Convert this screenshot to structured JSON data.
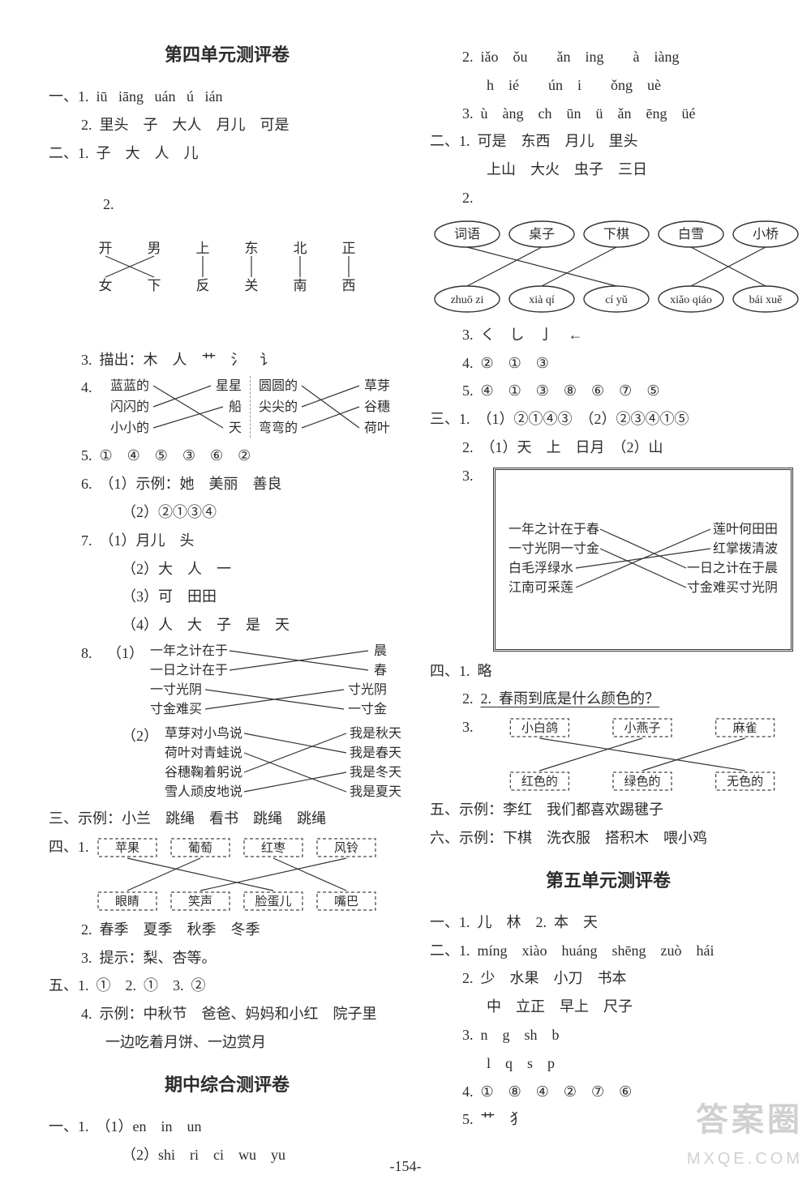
{
  "page_number": "-154-",
  "watermark": {
    "line1": "答案圈",
    "line2": "MXQE.COM"
  },
  "left": {
    "title": "第四单元测评卷",
    "s1_1": "一、1.  iū   iāng   uán   ú   ián",
    "s1_2": "2.  里头　子　大人　月儿　可是",
    "s2_1": "二、1.  子　大　人　儿",
    "s2_2_top": [
      "开",
      "男",
      "上",
      "东",
      "北",
      "正"
    ],
    "s2_2_bot": [
      "女",
      "下",
      "反",
      "关",
      "南",
      "西"
    ],
    "s2_2_map": [
      [
        0,
        1
      ],
      [
        1,
        0
      ],
      [
        2,
        2
      ],
      [
        3,
        3
      ],
      [
        4,
        4
      ],
      [
        5,
        5
      ]
    ],
    "s2_3": "3.  描出：木　人　艹　氵　讠",
    "s2_4_left_top": [
      "蓝蓝的",
      "闪闪的",
      "小小的"
    ],
    "s2_4_left_bot": [
      "星星",
      "船",
      "天"
    ],
    "s2_4_left_map": [
      [
        0,
        2
      ],
      [
        1,
        0
      ],
      [
        2,
        1
      ]
    ],
    "s2_4_right_top": [
      "圆圆的",
      "尖尖的",
      "弯弯的"
    ],
    "s2_4_right_bot": [
      "草芽",
      "谷穗",
      "荷叶"
    ],
    "s2_4_right_map": [
      [
        0,
        2
      ],
      [
        1,
        0
      ],
      [
        2,
        1
      ]
    ],
    "s2_5": "5.  ①　④　⑤　③　⑥　②",
    "s2_6a": "6.  （1）示例：她　美丽　善良",
    "s2_6b": "（2）②①③④",
    "s2_7a": "7.  （1）月儿　头",
    "s2_7b": "（2）大　人　一",
    "s2_7c": "（3）可　田田",
    "s2_7d": "（4）人　大　子　是　天",
    "s2_8a_left": [
      "一年之计在于",
      "一日之计在于",
      "一寸光阴",
      "寸金难买"
    ],
    "s2_8a_right": [
      "晨",
      "春",
      "寸光阴",
      "一寸金"
    ],
    "s2_8a_map": [
      [
        0,
        1
      ],
      [
        1,
        0
      ],
      [
        2,
        3
      ],
      [
        3,
        2
      ]
    ],
    "s2_8b_left": [
      "草芽对小鸟说",
      "荷叶对青蛙说",
      "谷穗鞠着躬说",
      "雪人顽皮地说"
    ],
    "s2_8b_right": [
      "我是秋天",
      "我是春天",
      "我是冬天",
      "我是夏天"
    ],
    "s2_8b_map": [
      [
        0,
        1
      ],
      [
        1,
        3
      ],
      [
        2,
        0
      ],
      [
        3,
        2
      ]
    ],
    "s3": "三、示例：小兰　跳绳　看书　跳绳　跳绳",
    "s4_top": [
      "苹果",
      "葡萄",
      "红枣",
      "风铃"
    ],
    "s4_bot": [
      "眼睛",
      "笑声",
      "脸蛋儿",
      "嘴巴"
    ],
    "s4_map": [
      [
        0,
        2
      ],
      [
        1,
        0
      ],
      [
        2,
        3
      ],
      [
        3,
        1
      ]
    ],
    "s4_2": "2.  春季　夏季　秋季　冬季",
    "s4_3": "3.  提示：梨、杏等。",
    "s5a": "五、1.  ①　2.  ①　3.  ②",
    "s5b": "4.  示例：中秋节　爸爸、妈妈和小红　院子里",
    "s5c": "一边吃着月饼、一边赏月",
    "title2": "期中综合测评卷",
    "m1a": "一、1.  （1）en　in　un",
    "m1b": "（2）shi　ri　ci　wu　yu"
  },
  "right": {
    "r2": "2.  iǎo　ǒu　　ǎn　ing　　à　iàng",
    "r2b": "h　ié　　ún　i　　ǒng　uè",
    "r3": "3.  ù　àng　ch　ūn　ü　ǎn　ēng　üé",
    "rII1a": "二、1.  可是　东西　月儿　里头",
    "rII1b": "上山　大火　虫子　三日",
    "rII2_top_words": [
      "词语",
      "桌子",
      "下棋",
      "白雪",
      "小桥"
    ],
    "rII2_bot_words": [
      "zhuō zi",
      "xià qí",
      "cí yǔ",
      "xiǎo qiáo",
      "bái xuě"
    ],
    "rII2_map": [
      [
        0,
        2
      ],
      [
        1,
        0
      ],
      [
        2,
        1
      ],
      [
        3,
        4
      ],
      [
        4,
        3
      ]
    ],
    "rII3": "3.  く　し　亅　←",
    "rII4": "4.  ②　①　③",
    "rII5": "5.  ④　①　③　⑧　⑥　⑦　⑤",
    "rIII1": "三、1.  （1）②①④③　（2）②③④①⑤",
    "rIII2": "2.  （1）天　上　日月　（2）山",
    "rIII3_left": [
      "一年之计在于春",
      "一寸光阴一寸金",
      "白毛浮绿水",
      "江南可采莲"
    ],
    "rIII3_right": [
      "莲叶何田田",
      "红掌拨清波",
      "一日之计在于晨",
      "寸金难买寸光阴"
    ],
    "rIII3_map": [
      [
        0,
        2
      ],
      [
        1,
        3
      ],
      [
        2,
        1
      ],
      [
        3,
        0
      ]
    ],
    "rIV1": "四、1.  略",
    "rIV2": "2.  春雨到底是什么颜色的？",
    "rIV3_top": [
      "小白鸽",
      "小燕子",
      "麻雀"
    ],
    "rIV3_bot": [
      "红色的",
      "绿色的",
      "无色的"
    ],
    "rIV3_map": [
      [
        0,
        2
      ],
      [
        1,
        0
      ],
      [
        2,
        1
      ]
    ],
    "rV": "五、示例：李红　我们都喜欢踢毽子",
    "rVI": "六、示例：下棋　洗衣服　搭积木　喂小鸡",
    "title5": "第五单元测评卷",
    "u5_I": "一、1.  儿　林　2.  本　天",
    "u5_II1": "二、1.  míng　xiào　huáng　shēng　zuò　hái",
    "u5_II2a": "2.  少　水果　小刀　书本",
    "u5_II2b": "中　立正　早上　尺子",
    "u5_II3a": "3.  n　g　sh　b",
    "u5_II3b": "l　q　s　p",
    "u5_II4": "4.  ①　⑧　④　②　⑦　⑥",
    "u5_II5": "5.  艹　犭"
  },
  "style": {
    "text_color": "#2c2c2c",
    "line_color": "#333333",
    "bg": "#ffffff",
    "font_size": 18
  }
}
